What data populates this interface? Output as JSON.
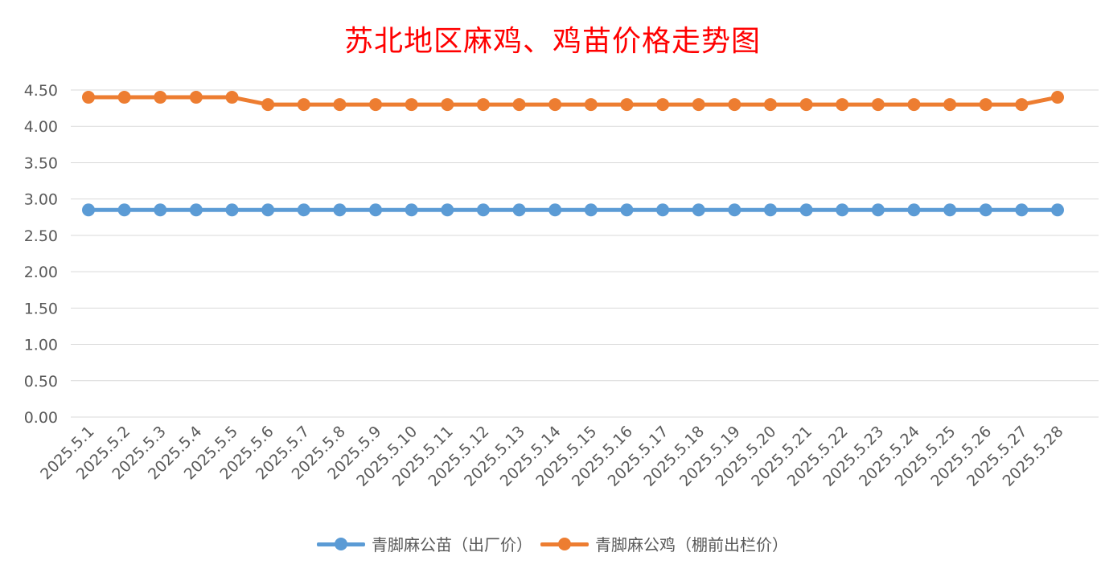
{
  "chart_data": {
    "type": "line",
    "title": "苏北地区麻鸡、鸡苗价格走势图",
    "xlabel": "",
    "ylabel": "",
    "ylim": [
      0,
      4.5
    ],
    "yticks": [
      "0.00",
      "0.50",
      "1.00",
      "1.50",
      "2.00",
      "2.50",
      "3.00",
      "3.50",
      "4.00",
      "4.50"
    ],
    "categories": [
      "2025.5.1",
      "2025.5.2",
      "2025.5.3",
      "2025.5.4",
      "2025.5.5",
      "2025.5.6",
      "2025.5.7",
      "2025.5.8",
      "2025.5.9",
      "2025.5.10",
      "2025.5.11",
      "2025.5.12",
      "2025.5.13",
      "2025.5.14",
      "2025.5.15",
      "2025.5.16",
      "2025.5.17",
      "2025.5.18",
      "2025.5.19",
      "2025.5.20",
      "2025.5.21",
      "2025.5.22",
      "2025.5.23",
      "2025.5.24",
      "2025.5.25",
      "2025.5.26",
      "2025.5.27",
      "2025.5.28"
    ],
    "series": [
      {
        "name": "青脚麻公苗（出厂价）",
        "color": "#5b9bd5",
        "values": [
          2.85,
          2.85,
          2.85,
          2.85,
          2.85,
          2.85,
          2.85,
          2.85,
          2.85,
          2.85,
          2.85,
          2.85,
          2.85,
          2.85,
          2.85,
          2.85,
          2.85,
          2.85,
          2.85,
          2.85,
          2.85,
          2.85,
          2.85,
          2.85,
          2.85,
          2.85,
          2.85,
          2.85
        ]
      },
      {
        "name": "青脚麻公鸡（棚前出栏价）",
        "color": "#ed7d31",
        "values": [
          4.4,
          4.4,
          4.4,
          4.4,
          4.4,
          4.3,
          4.3,
          4.3,
          4.3,
          4.3,
          4.3,
          4.3,
          4.3,
          4.3,
          4.3,
          4.3,
          4.3,
          4.3,
          4.3,
          4.3,
          4.3,
          4.3,
          4.3,
          4.3,
          4.3,
          4.3,
          4.3,
          4.4
        ]
      }
    ],
    "grid": true,
    "legend_position": "bottom"
  }
}
